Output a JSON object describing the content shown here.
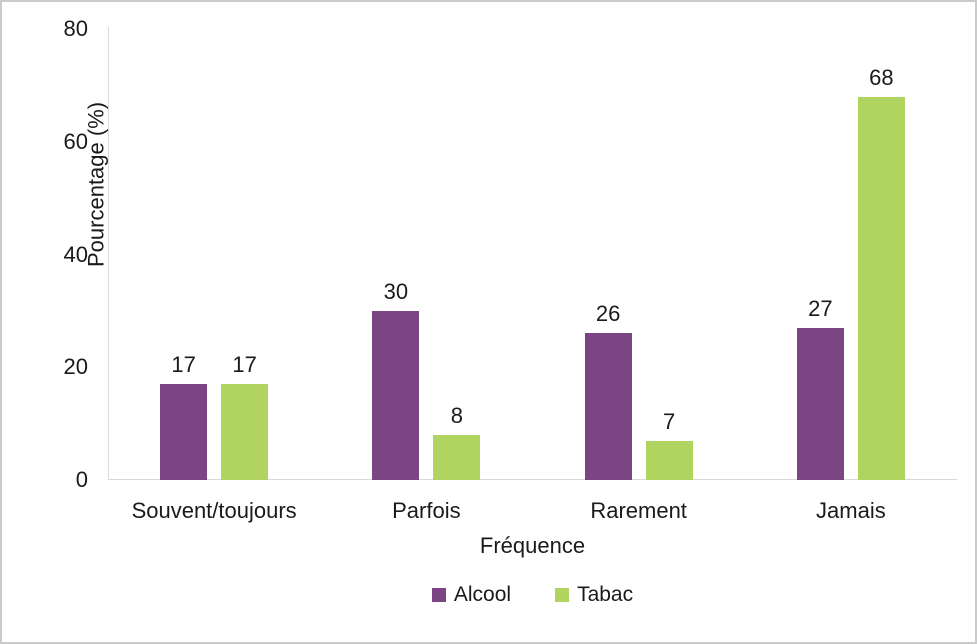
{
  "chart_data": {
    "type": "bar",
    "categories": [
      "Souvent/toujours",
      "Parfois",
      "Rarement",
      "Jamais"
    ],
    "series": [
      {
        "name": "Alcool",
        "color": "#7B4483",
        "values": [
          17,
          30,
          26,
          27
        ]
      },
      {
        "name": "Tabac",
        "color": "#B1D35F",
        "values": [
          17,
          8,
          7,
          68
        ]
      }
    ],
    "title": "",
    "xlabel": "Fréquence",
    "ylabel": "Pourcentage (%)",
    "ylim": [
      0,
      80
    ],
    "yticks": [
      0,
      20,
      40,
      60,
      80
    ],
    "grid": false,
    "legend_position": "bottom",
    "data_labels": true
  },
  "colors": {
    "axis_line": "#D9D9D9",
    "text": "#1A1A1A",
    "background": "#FFFFFF",
    "frame_border": "#CBCBCB"
  }
}
